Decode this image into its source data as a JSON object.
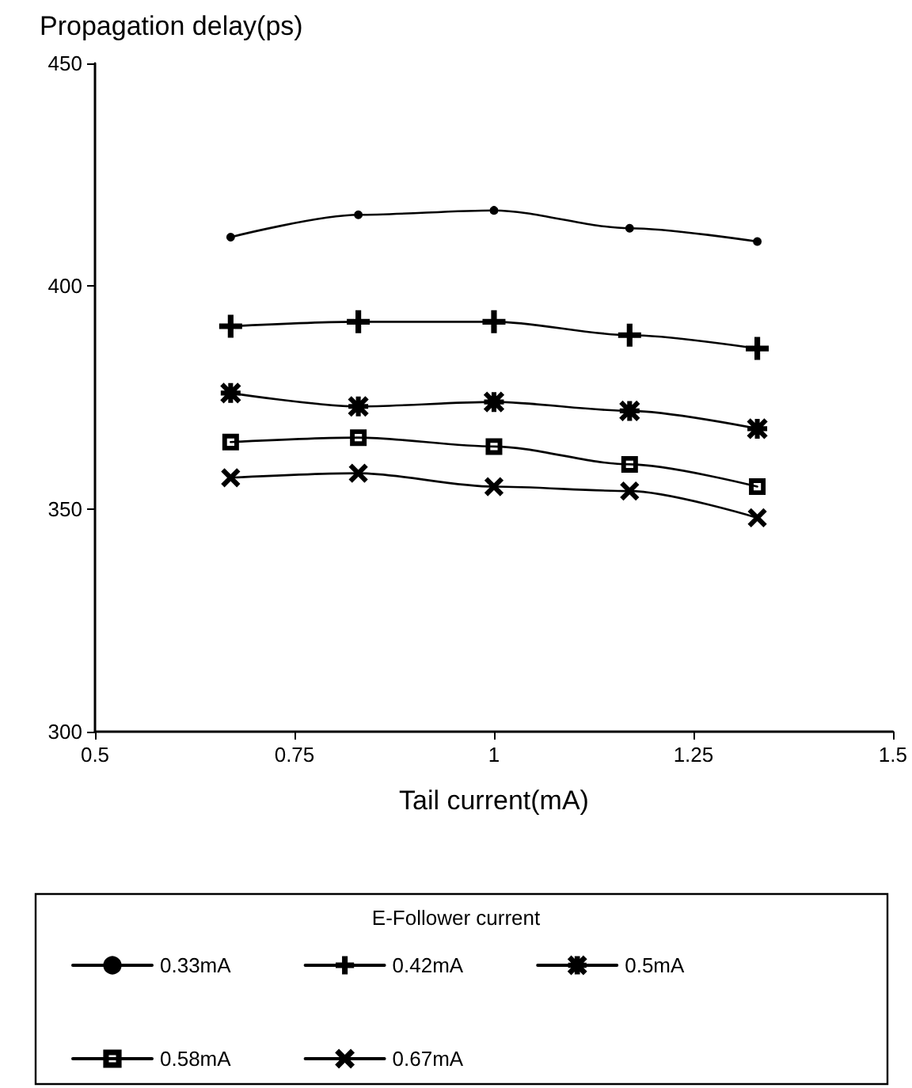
{
  "chart_data": {
    "type": "line",
    "ylabel": "Propagation delay(ps)",
    "xlabel": "Tail current(mA)",
    "legend_title": "E-Follower current",
    "legend": "bottom",
    "grid": false,
    "x": [
      0.67,
      0.83,
      1,
      1.17,
      1.33
    ],
    "xlim": [
      0.5,
      1.5
    ],
    "xticks": [
      0.5,
      0.75,
      1,
      1.25,
      1.5
    ],
    "ylim": [
      300,
      450
    ],
    "yticks": [
      300,
      350,
      400,
      450
    ],
    "series": [
      {
        "name": "0.33mA",
        "color": "#000000",
        "marker": "circle",
        "values": [
          411,
          416,
          417,
          413,
          410
        ]
      },
      {
        "name": "0.42mA",
        "color": "#000000",
        "marker": "plus",
        "values": [
          391,
          392,
          392,
          389,
          386
        ]
      },
      {
        "name": "0.5mA",
        "color": "#000000",
        "marker": "star",
        "values": [
          376,
          373,
          374,
          372,
          368
        ]
      },
      {
        "name": "0.58mA",
        "color": "#000000",
        "marker": "square",
        "values": [
          365,
          366,
          364,
          360,
          355
        ]
      },
      {
        "name": "0.67mA",
        "color": "#000000",
        "marker": "cross",
        "values": [
          357,
          358,
          355,
          354,
          348
        ]
      }
    ]
  }
}
